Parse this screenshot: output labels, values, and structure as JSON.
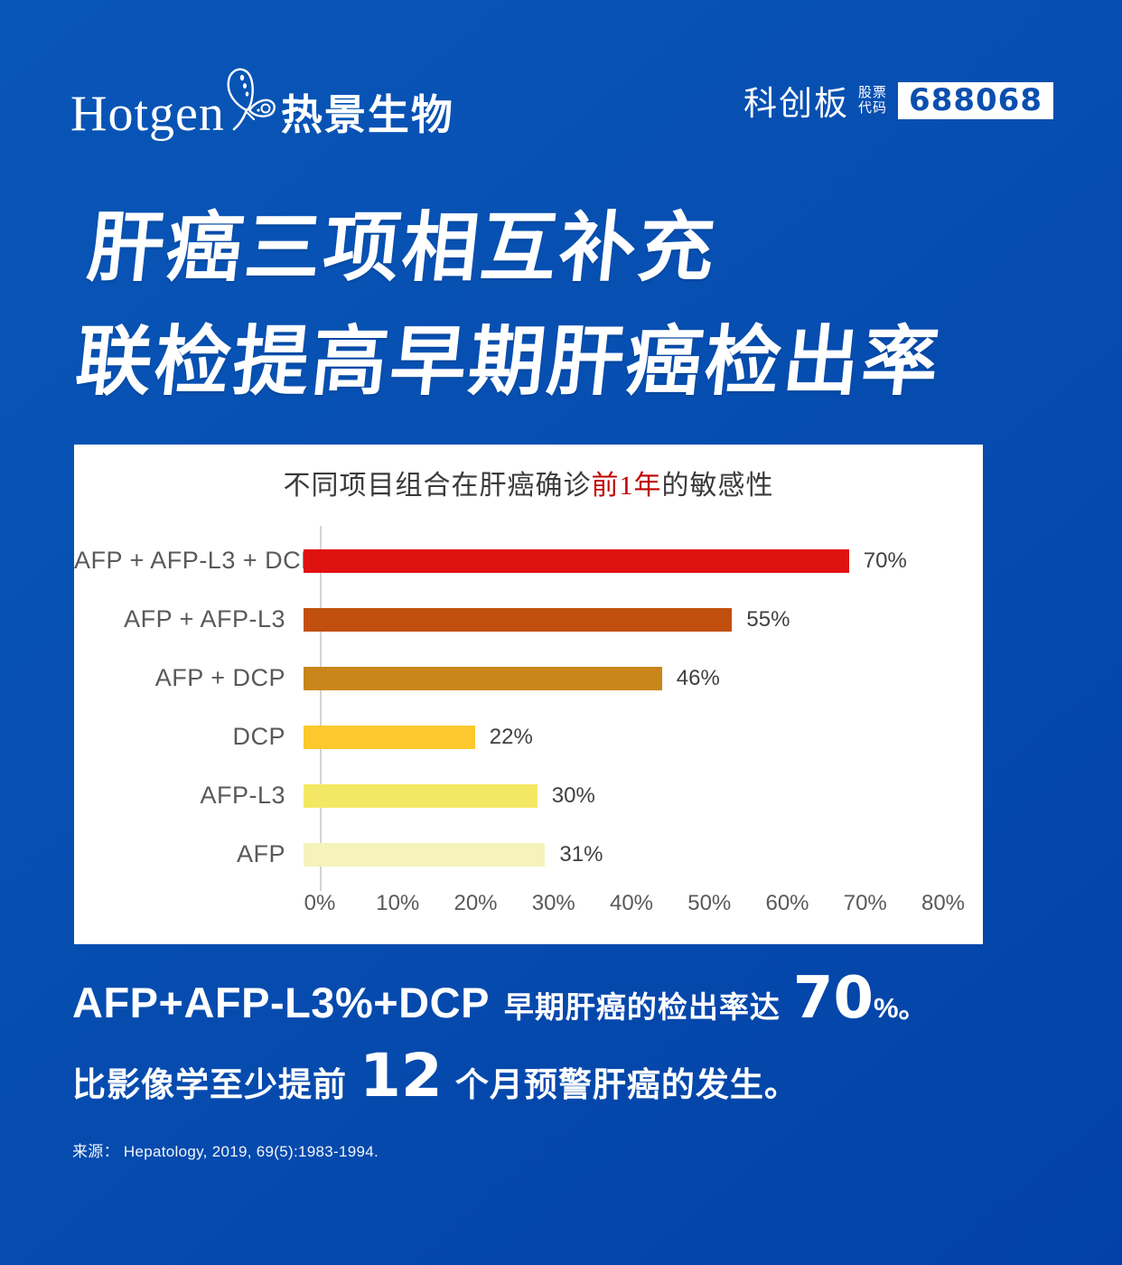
{
  "header": {
    "logo_en": "Hotgen",
    "logo_cn": "热景生物",
    "board_name": "科创板",
    "stock_label_line1": "股票",
    "stock_label_line2": "代码",
    "stock_code": "688068"
  },
  "headline": {
    "line1": "肝癌三项相互补充",
    "line2": "联检提高早期肝癌检出率"
  },
  "chart_data": {
    "type": "bar",
    "orientation": "horizontal",
    "title_prefix": "不同项目组合在肝癌确诊",
    "title_highlight": "前1年",
    "title_suffix": "的敏感性",
    "categories": [
      "AFP + AFP-L3 + DCP",
      "AFP + AFP-L3",
      "AFP + DCP",
      "DCP",
      "AFP-L3",
      "AFP"
    ],
    "values": [
      70,
      55,
      46,
      22,
      30,
      31
    ],
    "value_labels": [
      "70%",
      "55%",
      "46%",
      "22%",
      "30%",
      "31%"
    ],
    "bar_colors": [
      "#e01111",
      "#c1500f",
      "#c8861b",
      "#fdc82d",
      "#f4e763",
      "#f5f2bc"
    ],
    "xlim": [
      0,
      80
    ],
    "x_ticks": [
      "0%",
      "10%",
      "20%",
      "30%",
      "40%",
      "50%",
      "60%",
      "70%",
      "80%"
    ],
    "grid": false,
    "legend": "none",
    "highlight_color": "#c00000"
  },
  "summary": {
    "line1_lead": "AFP+AFP-L3%+DCP",
    "line1_mid": "早期肝癌的检出率达",
    "line1_big": "70",
    "line1_tail": "%。",
    "line2_pre": "比影像学至少提前",
    "line2_big": "12",
    "line2_post": "个月预警肝癌的发生。"
  },
  "source": {
    "text": "来源：  Hepatology, 2019, 69(5):1983-1994."
  },
  "colors": {
    "background_top": "#0856b7",
    "background_bottom": "#0341a6",
    "stock_code_text": "#0b4fae",
    "bar_red": "#e01111",
    "title_highlight": "#c00000"
  }
}
